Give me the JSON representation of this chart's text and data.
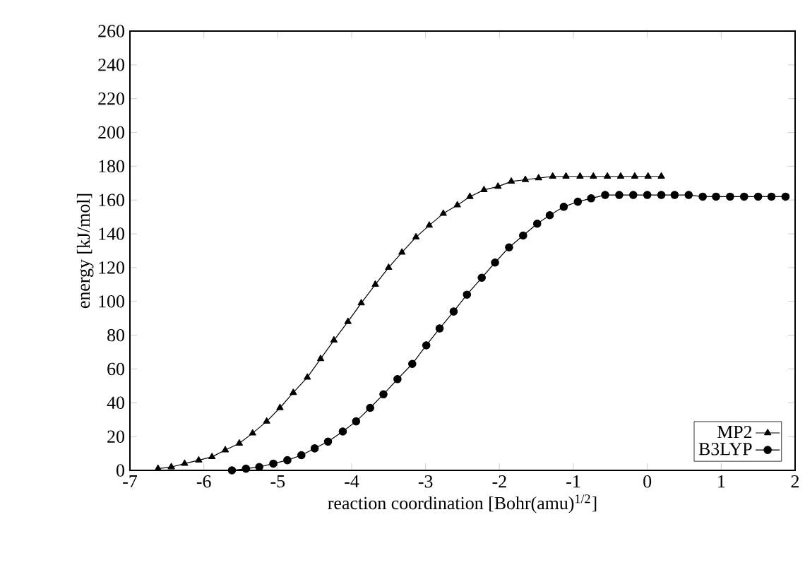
{
  "chart_data": {
    "type": "line",
    "xlabel": "reaction coordination [Bohr(amu)$^{1/2}$]",
    "ylabel": "energy [kJ/mol]",
    "xlim": [
      -7,
      2
    ],
    "ylim": [
      0,
      260
    ],
    "xticks": [
      -7,
      -6,
      -5,
      -4,
      -3,
      -2,
      -1,
      0,
      1,
      2
    ],
    "yticks": [
      0,
      20,
      40,
      60,
      80,
      100,
      120,
      140,
      160,
      180,
      200,
      220,
      240,
      260
    ],
    "grid": false,
    "legend": "bottom right",
    "line_style": "solid",
    "series": [
      {
        "name": "MP2",
        "color": "#000000",
        "marker": "triangle",
        "x": [
          -6.62,
          -6.44,
          -6.26,
          -6.07,
          -5.89,
          -5.71,
          -5.52,
          -5.34,
          -5.15,
          -4.97,
          -4.79,
          -4.6,
          -4.42,
          -4.24,
          -4.05,
          -3.87,
          -3.68,
          -3.5,
          -3.32,
          -3.13,
          -2.95,
          -2.76,
          -2.57,
          -2.4,
          -2.21,
          -2.02,
          -1.84,
          -1.65,
          -1.47,
          -1.28,
          -1.1,
          -0.91,
          -0.73,
          -0.54,
          -0.36,
          -0.17,
          0.01,
          0.19
        ],
        "values": [
          1,
          2,
          4,
          6,
          8,
          12,
          16,
          22,
          29,
          37,
          46,
          55,
          66,
          77,
          88,
          99,
          110,
          120,
          129,
          138,
          145,
          152,
          157,
          162,
          166,
          168,
          171,
          172,
          173,
          174,
          174,
          174,
          174,
          174,
          174,
          174,
          174,
          174
        ]
      },
      {
        "name": "B3LYP",
        "color": "#000000",
        "marker": "circle",
        "x": [
          -5.62,
          -5.43,
          -5.25,
          -5.06,
          -4.87,
          -4.68,
          -4.5,
          -4.32,
          -4.12,
          -3.94,
          -3.75,
          -3.57,
          -3.38,
          -3.18,
          -2.99,
          -2.81,
          -2.62,
          -2.44,
          -2.24,
          -2.06,
          -1.87,
          -1.68,
          -1.49,
          -1.32,
          -1.13,
          -0.94,
          -0.76,
          -0.57,
          -0.38,
          -0.19,
          0.0,
          0.19,
          0.37,
          0.56,
          0.75,
          0.93,
          1.12,
          1.31,
          1.5,
          1.68,
          1.87
        ],
        "values": [
          0,
          1,
          2,
          4,
          6,
          9,
          13,
          17,
          23,
          29,
          37,
          45,
          54,
          63,
          74,
          84,
          94,
          104,
          114,
          123,
          132,
          139,
          146,
          151,
          156,
          159,
          161,
          163,
          163,
          163,
          163,
          163,
          163,
          163,
          162,
          162,
          162,
          162,
          162,
          162,
          162
        ]
      }
    ]
  }
}
